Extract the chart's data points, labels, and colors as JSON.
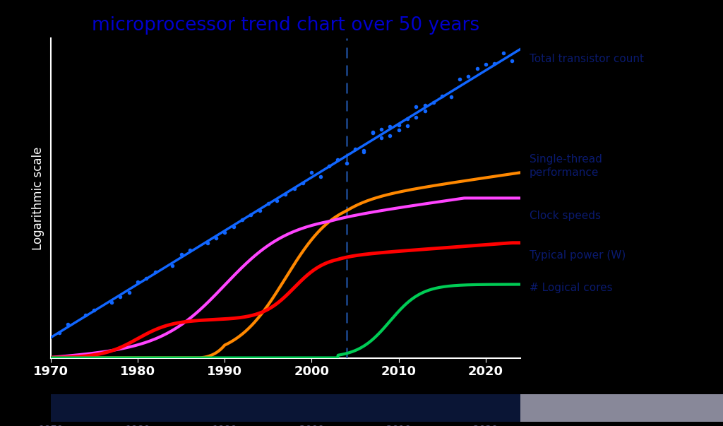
{
  "title": "microprocessor trend chart over 50 years",
  "title_color": "#0000cc",
  "title_fontsize": 19,
  "background_color": "#000000",
  "ylabel": "Logarithmic scale",
  "ylabel_color": "#ffffff",
  "axis_color": "#ffffff",
  "tick_color": "#ffffff",
  "xlim": [
    1970,
    2024
  ],
  "ylim": [
    0,
    1
  ],
  "dashed_line_x": 2004,
  "dashed_line_color": "#2255aa",
  "transistor_line_color": "#1166ff",
  "transistor_dot_color": "#1166ff",
  "orange_line_color": "#ff8800",
  "magenta_line_color": "#ff44ff",
  "red_line_color": "#ff0000",
  "green_line_color": "#00cc55",
  "label_color": "#0a1a6e",
  "label_fontsize": 11,
  "bottom_bar_color": "#0a1535",
  "bottom_tick_color": "#555577",
  "labels": {
    "transistor": "Total transistor count",
    "single_thread": "Single-thread\nperformance",
    "clock": "Clock speeds",
    "power": "Typical power (W)",
    "cores": "# Logical cores"
  }
}
